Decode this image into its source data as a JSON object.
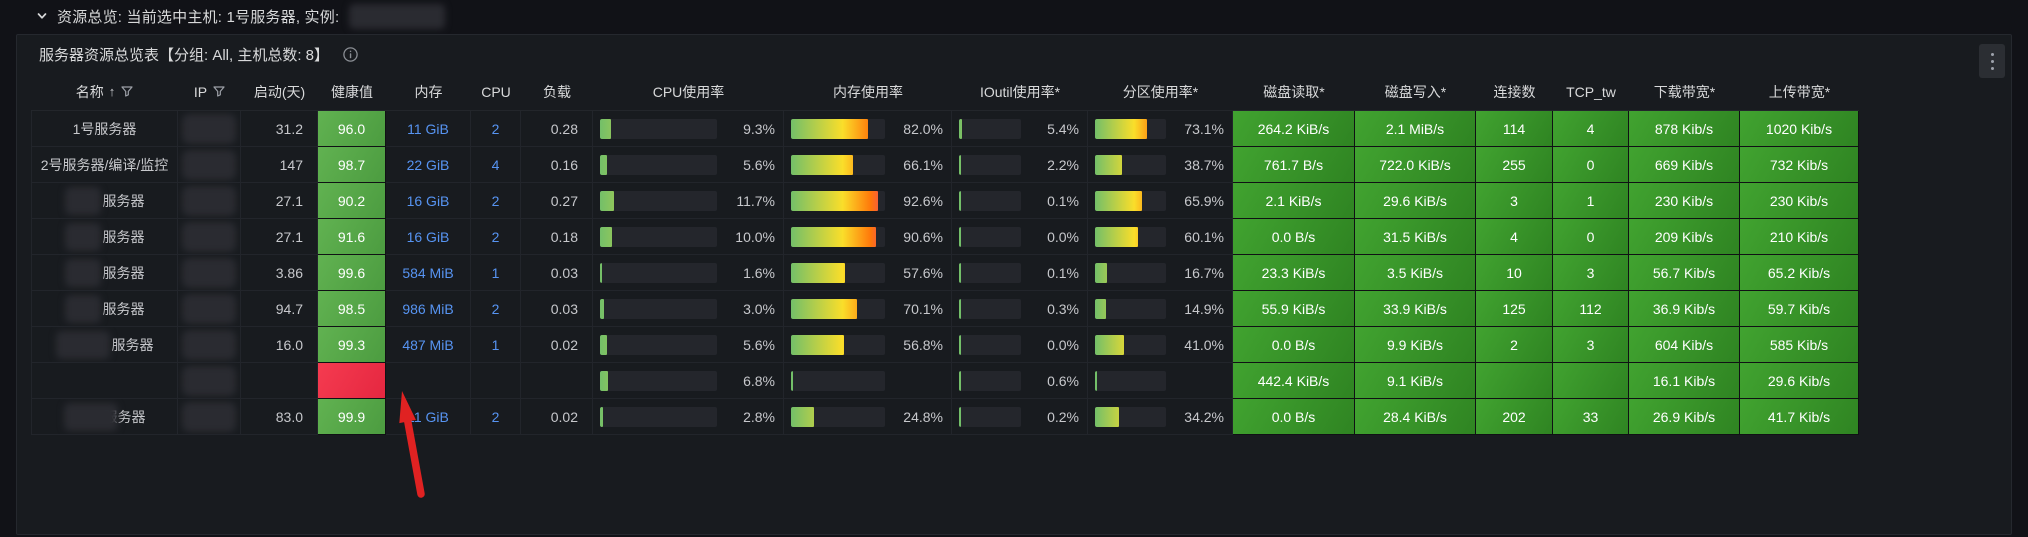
{
  "row_header": {
    "text": "资源总览: 当前选中主机: 1号服务器, 实例:",
    "instance_redacted": true
  },
  "panel": {
    "title": "服务器资源总览表【分组: All, 主机总数: 8】",
    "info_icon": "info-circle-icon",
    "menu_icon": "kebab-menu-icon"
  },
  "colors": {
    "health_green_top": "#61B251",
    "health_green_bottom": "#4C9C40",
    "cell_green_top": "#41A330",
    "cell_green_bottom": "#2F8422",
    "alert_red_top": "#F53B50",
    "alert_red_bottom": "#E52740",
    "link_blue": "#5794F2",
    "arrow_red": "#E02222",
    "bar_gradient": [
      "#73BF69",
      "#FADE2A",
      "#FF780A",
      "#F2495C"
    ],
    "bar_track": "#24262C"
  },
  "table": {
    "columns": [
      {
        "id": "name",
        "label": "名称",
        "type": "name",
        "sorted": "asc",
        "filterable": true
      },
      {
        "id": "ip",
        "label": "IP",
        "type": "redacted",
        "filterable": true
      },
      {
        "id": "uptime",
        "label": "启动(天)",
        "type": "number"
      },
      {
        "id": "health",
        "label": "健康值",
        "type": "health"
      },
      {
        "id": "memory",
        "label": "内存",
        "type": "link"
      },
      {
        "id": "cpu",
        "label": "CPU",
        "type": "link"
      },
      {
        "id": "load",
        "label": "负载",
        "type": "number"
      },
      {
        "id": "cpu_usage",
        "label": "CPU使用率",
        "type": "bar"
      },
      {
        "id": "mem_usage",
        "label": "内存使用率",
        "type": "bar"
      },
      {
        "id": "ioutil",
        "label": "IOutil使用率*",
        "type": "bar"
      },
      {
        "id": "partition",
        "label": "分区使用率*",
        "type": "bar"
      },
      {
        "id": "disk_read",
        "label": "磁盘读取*",
        "type": "colored"
      },
      {
        "id": "disk_write",
        "label": "磁盘写入*",
        "type": "colored"
      },
      {
        "id": "connections",
        "label": "连接数",
        "type": "colored"
      },
      {
        "id": "tcp_tw",
        "label": "TCP_tw",
        "type": "colored"
      },
      {
        "id": "download",
        "label": "下载带宽*",
        "type": "colored"
      },
      {
        "id": "upload",
        "label": "上传带宽*",
        "type": "colored"
      }
    ],
    "rows": [
      {
        "name": "1号服务器",
        "name_redacted": false,
        "ip_redacted": true,
        "uptime": "31.2",
        "health": "96.0",
        "health_state": "ok",
        "memory": "11 GiB",
        "cpu": "2",
        "load": "0.28",
        "cpu_usage": 9.3,
        "mem_usage": 82.0,
        "ioutil": 5.4,
        "partition": 73.1,
        "disk_read": "264.2 KiB/s",
        "disk_write": "2.1 MiB/s",
        "connections": "114",
        "tcp_tw": "4",
        "download": "878 Kib/s",
        "upload": "1020 Kib/s"
      },
      {
        "name": "2号服务器/编译/监控",
        "name_redacted": false,
        "ip_redacted": true,
        "uptime": "147",
        "health": "98.7",
        "health_state": "ok",
        "memory": "22 GiB",
        "cpu": "4",
        "load": "0.16",
        "cpu_usage": 5.6,
        "mem_usage": 66.1,
        "ioutil": 2.2,
        "partition": 38.7,
        "disk_read": "761.7 B/s",
        "disk_write": "722.0 KiB/s",
        "connections": "255",
        "tcp_tw": "0",
        "download": "669 Kib/s",
        "upload": "732 Kib/s"
      },
      {
        "name": "服务器",
        "name_redacted": true,
        "ip_redacted": true,
        "uptime": "27.1",
        "health": "90.2",
        "health_state": "ok",
        "memory": "16 GiB",
        "cpu": "2",
        "load": "0.27",
        "cpu_usage": 11.7,
        "mem_usage": 92.6,
        "ioutil": 0.1,
        "partition": 65.9,
        "disk_read": "2.1 KiB/s",
        "disk_write": "29.6 KiB/s",
        "connections": "3",
        "tcp_tw": "1",
        "download": "230 Kib/s",
        "upload": "230 Kib/s"
      },
      {
        "name": "服务器",
        "name_redacted": true,
        "ip_redacted": true,
        "uptime": "27.1",
        "health": "91.6",
        "health_state": "ok",
        "memory": "16 GiB",
        "cpu": "2",
        "load": "0.18",
        "cpu_usage": 10.0,
        "mem_usage": 90.6,
        "ioutil": 0.0,
        "partition": 60.1,
        "disk_read": "0.0 B/s",
        "disk_write": "31.5 KiB/s",
        "connections": "4",
        "tcp_tw": "0",
        "download": "209 Kib/s",
        "upload": "210 Kib/s"
      },
      {
        "name": "服务器",
        "name_redacted": true,
        "ip_redacted": true,
        "uptime": "3.86",
        "health": "99.6",
        "health_state": "ok",
        "memory": "584 MiB",
        "cpu": "1",
        "load": "0.03",
        "cpu_usage": 1.6,
        "mem_usage": 57.6,
        "ioutil": 0.1,
        "partition": 16.7,
        "disk_read": "23.3 KiB/s",
        "disk_write": "3.5 KiB/s",
        "connections": "10",
        "tcp_tw": "3",
        "download": "56.7 Kib/s",
        "upload": "65.2 Kib/s"
      },
      {
        "name": "服务器",
        "name_redacted": true,
        "ip_redacted": true,
        "uptime": "94.7",
        "health": "98.5",
        "health_state": "ok",
        "memory": "986 MiB",
        "cpu": "2",
        "load": "0.03",
        "cpu_usage": 3.0,
        "mem_usage": 70.1,
        "ioutil": 0.3,
        "partition": 14.9,
        "disk_read": "55.9 KiB/s",
        "disk_write": "33.9 KiB/s",
        "connections": "125",
        "tcp_tw": "112",
        "download": "36.9 Kib/s",
        "upload": "59.7 Kib/s"
      },
      {
        "name": "服务器",
        "name_redacted": true,
        "redaction_wide": true,
        "ip_redacted": true,
        "uptime": "16.0",
        "health": "99.3",
        "health_state": "ok",
        "memory": "487 MiB",
        "cpu": "1",
        "load": "0.02",
        "cpu_usage": 5.6,
        "mem_usage": 56.8,
        "ioutil": 0.0,
        "partition": 41.0,
        "disk_read": "0.0 B/s",
        "disk_write": "9.9 KiB/s",
        "connections": "2",
        "tcp_tw": "3",
        "download": "604 Kib/s",
        "upload": "585 Kib/s"
      },
      {
        "name": "",
        "name_redacted": false,
        "ip_redacted": true,
        "uptime": "",
        "health": "",
        "health_state": "alert",
        "memory": "",
        "cpu": "",
        "load": "",
        "cpu_usage": 6.8,
        "mem_usage": null,
        "ioutil": 0.6,
        "partition": null,
        "disk_read": "442.4 KiB/s",
        "disk_write": "9.1 KiB/s",
        "connections": "",
        "tcp_tw": "",
        "download": "16.1 Kib/s",
        "upload": "29.6 Kib/s"
      },
      {
        "name": "服务器",
        "name_redacted": true,
        "redaction_wide": true,
        "redaction_overlap": true,
        "ip_redacted": true,
        "uptime": "83.0",
        "health": "99.9",
        "health_state": "ok",
        "memory": "11 GiB",
        "cpu": "2",
        "load": "0.02",
        "cpu_usage": 2.8,
        "mem_usage": 24.8,
        "ioutil": 0.2,
        "partition": 34.2,
        "disk_read": "0.0 B/s",
        "disk_write": "28.4 KiB/s",
        "connections": "202",
        "tcp_tw": "33",
        "download": "26.9 Kib/s",
        "upload": "41.7 Kib/s"
      }
    ]
  },
  "annotation": {
    "type": "arrow",
    "color": "#E02222",
    "points_at": "health-alert-cell"
  }
}
